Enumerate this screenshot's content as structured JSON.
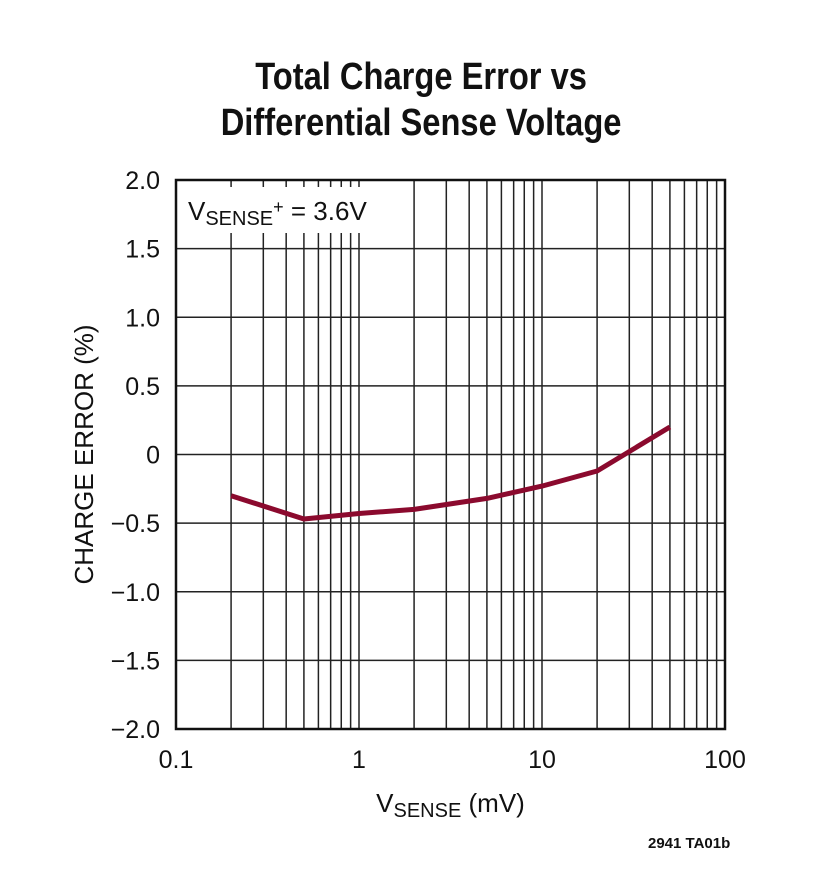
{
  "chart_data": {
    "type": "line",
    "title_lines": [
      "Total Charge Error vs",
      "Differential Sense Voltage"
    ],
    "xlabel": {
      "main": "V",
      "sub": "SENSE",
      "rest": " (mV)"
    },
    "ylabel": "CHARGE ERROR (%)",
    "xscale": "log",
    "xlim": [
      0.1,
      100
    ],
    "ylim": [
      -2.0,
      2.0
    ],
    "xtick_labels": [
      "0.1",
      "1",
      "10",
      "100"
    ],
    "xtick_values": [
      0.1,
      1,
      10,
      100
    ],
    "ytick_labels": [
      "2.0",
      "1.5",
      "1.0",
      "0.5",
      "0",
      "−0.5",
      "−1.0",
      "−1.5",
      "−2.0"
    ],
    "ytick_values": [
      2.0,
      1.5,
      1.0,
      0.5,
      0,
      -0.5,
      -1.0,
      -1.5,
      -2.0
    ],
    "grid": true,
    "annotation": {
      "main": "V",
      "sub": "SENSE",
      "sup": "+",
      "rest": " = 3.6V"
    },
    "series": [
      {
        "color": "#8b0a2e",
        "x": [
          0.2,
          0.5,
          1,
          2,
          5,
          10,
          20,
          50
        ],
        "y": [
          -0.3,
          -0.47,
          -0.43,
          -0.4,
          -0.32,
          -0.23,
          -0.12,
          0.2
        ]
      }
    ]
  },
  "footnote": "2941 TA01b"
}
